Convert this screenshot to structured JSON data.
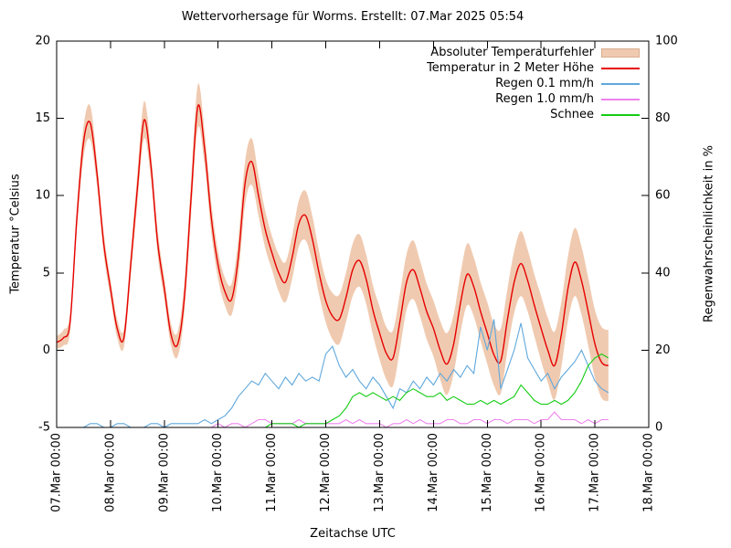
{
  "title": "Wettervorhersage für Worms. Erstellt: 07.Mar 2025 05:54",
  "axes": {
    "x_label": "Zeitachse UTC",
    "y_left_label": "Temperatur °Celsius",
    "y_right_label": "Regenwahrscheinlichkeit in %",
    "x_ticks": [
      "07.Mar 00:00",
      "08.Mar 00:00",
      "09.Mar 00:00",
      "10.Mar 00:00",
      "11.Mar 00:00",
      "12.Mar 00:00",
      "13.Mar 00:00",
      "14.Mar 00:00",
      "15.Mar 00:00",
      "16.Mar 00:00",
      "17.Mar 00:00",
      "18.Mar 00:00"
    ],
    "y_left_ticks": [
      -5,
      0,
      5,
      10,
      15,
      20
    ],
    "y_right_ticks": [
      0,
      20,
      40,
      60,
      80,
      100
    ]
  },
  "legend": {
    "items": [
      {
        "label": "Absoluter Temperaturfehler"
      },
      {
        "label": "Temperatur in 2 Meter Höhe"
      },
      {
        "label": "Regen 0.1 mm/h"
      },
      {
        "label": "Regen 1.0 mm/h"
      },
      {
        "label": "Schnee"
      }
    ]
  },
  "chart_data": {
    "type": "line",
    "title": "Wettervorhersage für Worms. Erstellt: 07.Mar 2025 05:54",
    "xlabel": "Zeitachse UTC",
    "ylabel_left": "Temperatur °Celsius",
    "ylabel_right": "Regenwahrscheinlichkeit in %",
    "x_unit": "hours since 07.Mar 2025 00:00 UTC",
    "x_start_hour": 0,
    "x_step_hours": 3,
    "x_end_hour": 246,
    "x_axis_range_hours": [
      0,
      264
    ],
    "ylim_left": [
      -5,
      20
    ],
    "ylim_right": [
      0,
      100
    ],
    "grid": false,
    "legend_position": "top-right-inside",
    "series": [
      {
        "name": "Absoluter Temperaturfehler",
        "type": "band",
        "axis": "left",
        "color": "#f0cab0",
        "edge_color": "#d9ae8e",
        "error": [
          0.4,
          0.5,
          0.6,
          0.8,
          1.0,
          1.1,
          0.8,
          0.7,
          0.6,
          0.6,
          0.6,
          0.8,
          1.0,
          1.2,
          0.9,
          0.8,
          0.7,
          0.7,
          0.8,
          1.0,
          1.2,
          1.4,
          1.1,
          1.0,
          0.9,
          0.9,
          1.0,
          1.2,
          1.4,
          1.5,
          1.3,
          1.2,
          1.1,
          1.2,
          1.3,
          1.4,
          1.5,
          1.6,
          1.5,
          1.4,
          1.4,
          1.5,
          1.6,
          1.6,
          1.7,
          1.7,
          1.6,
          1.6,
          1.7,
          1.7,
          1.8,
          1.8,
          1.8,
          1.9,
          1.8,
          1.8,
          1.8,
          1.9,
          2.0,
          1.9,
          1.9,
          2.0,
          1.9,
          1.9,
          2.0,
          2.0,
          2.1,
          2.0,
          2.0,
          2.1,
          2.0,
          2.0,
          2.1,
          2.1,
          2.2,
          2.1,
          2.1,
          2.2,
          2.2,
          2.2,
          2.2,
          2.3,
          2.3
        ]
      },
      {
        "name": "Temperatur in 2 Meter Höhe",
        "type": "line",
        "axis": "left",
        "color": "#e60000",
        "values": [
          0.5,
          0.8,
          1.8,
          8.5,
          13.5,
          14.7,
          11.4,
          6.9,
          4.0,
          1.4,
          0.8,
          5.5,
          10.5,
          14.9,
          12.0,
          7.0,
          4.0,
          1.0,
          0.4,
          3.5,
          10.0,
          15.8,
          13.0,
          8.5,
          5.5,
          3.8,
          3.3,
          6.0,
          10.8,
          12.2,
          10.0,
          7.8,
          6.3,
          5.0,
          4.4,
          6.0,
          8.2,
          8.7,
          7.2,
          5.0,
          3.2,
          2.2,
          2.0,
          3.4,
          5.2,
          5.8,
          4.6,
          2.6,
          1.1,
          -0.2,
          -0.5,
          1.8,
          4.4,
          5.2,
          4.0,
          2.5,
          1.4,
          0.0,
          -0.9,
          0.4,
          3.0,
          4.9,
          4.1,
          2.5,
          1.1,
          -0.3,
          -0.7,
          2.0,
          4.4,
          5.6,
          4.5,
          2.9,
          1.4,
          0.0,
          -1.0,
          1.0,
          4.0,
          5.7,
          4.5,
          2.5,
          0.4,
          -0.8,
          -1.0
        ]
      },
      {
        "name": "Regen 0.1 mm/h",
        "type": "line",
        "axis": "right",
        "color": "#5fa8dc",
        "values": [
          0,
          0,
          0,
          0,
          0,
          1,
          1,
          0,
          0,
          1,
          1,
          0,
          0,
          0,
          1,
          1,
          0,
          1,
          1,
          1,
          1,
          1,
          2,
          1,
          2,
          3,
          5,
          8,
          10,
          12,
          11,
          14,
          12,
          10,
          13,
          11,
          14,
          12,
          13,
          12,
          19,
          21,
          16,
          13,
          15,
          12,
          10,
          13,
          11,
          8,
          5,
          10,
          9,
          12,
          10,
          13,
          11,
          14,
          12,
          15,
          13,
          16,
          14,
          26,
          20,
          28,
          10,
          15,
          20,
          27,
          18,
          15,
          12,
          14,
          10,
          13,
          15,
          17,
          20,
          16,
          12,
          10,
          9
        ]
      },
      {
        "name": "Regen 1.0 mm/h",
        "type": "line",
        "axis": "right",
        "color": "#ee82ee",
        "values": [
          0,
          0,
          0,
          0,
          0,
          0,
          0,
          0,
          0,
          0,
          0,
          0,
          0,
          0,
          0,
          0,
          0,
          0,
          0,
          0,
          0,
          0,
          0,
          0,
          1,
          0,
          1,
          1,
          0,
          1,
          2,
          2,
          1,
          1,
          1,
          1,
          2,
          1,
          1,
          1,
          1,
          1,
          1,
          2,
          1,
          2,
          1,
          1,
          1,
          0,
          1,
          1,
          2,
          1,
          2,
          1,
          1,
          1,
          2,
          2,
          1,
          1,
          2,
          2,
          1,
          2,
          2,
          1,
          2,
          2,
          2,
          1,
          2,
          2,
          4,
          2,
          2,
          2,
          1,
          2,
          1,
          2,
          2
        ]
      },
      {
        "name": "Schnee",
        "type": "line",
        "axis": "right",
        "color": "#14cc14",
        "values": [
          0,
          0,
          0,
          0,
          0,
          0,
          0,
          0,
          0,
          0,
          0,
          0,
          0,
          0,
          0,
          0,
          0,
          0,
          0,
          0,
          0,
          0,
          0,
          0,
          0,
          0,
          0,
          0,
          0,
          0,
          0,
          0,
          1,
          1,
          1,
          1,
          0,
          1,
          1,
          1,
          1,
          2,
          3,
          5,
          8,
          9,
          8,
          9,
          8,
          7,
          8,
          7,
          9,
          10,
          9,
          8,
          8,
          9,
          7,
          8,
          7,
          6,
          6,
          7,
          6,
          7,
          6,
          7,
          8,
          11,
          9,
          7,
          6,
          6,
          7,
          6,
          7,
          9,
          12,
          16,
          18,
          19,
          18
        ]
      }
    ]
  }
}
